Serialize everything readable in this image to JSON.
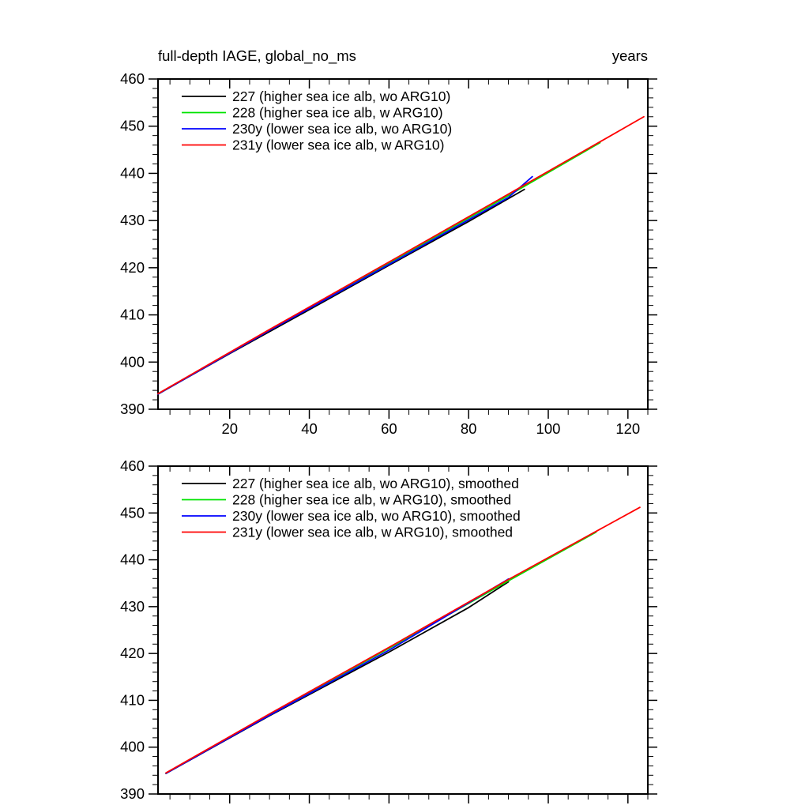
{
  "style": {
    "background": "#ffffff",
    "axis_color": "#000000"
  },
  "chart_data": [
    {
      "type": "line",
      "title": "full-depth IAGE, global_no_ms",
      "title_right": "years",
      "legend": {
        "position": "top-left-inside"
      },
      "axes": {
        "x": {
          "min": 2,
          "max": 125,
          "major_ticks": [
            20,
            40,
            60,
            80,
            100,
            120
          ],
          "minor_step": 5,
          "show_labels": true
        },
        "y": {
          "min": 390,
          "max": 460,
          "major_ticks": [
            390,
            400,
            410,
            420,
            430,
            440,
            450,
            460
          ],
          "minor_step": 2,
          "show_labels": true
        }
      },
      "series": [
        {
          "name": "227 (higher sea ice alb, wo ARG10)",
          "color": "#000000",
          "x": [
            2,
            20,
            40,
            60,
            80,
            94
          ],
          "y": [
            393.2,
            401.8,
            411.1,
            420.5,
            429.8,
            436.6
          ]
        },
        {
          "name": "228 (higher sea ice alb, w ARG10)",
          "color": "#00e400",
          "x": [
            2,
            30,
            60,
            90,
            113
          ],
          "y": [
            393.2,
            406.8,
            421.0,
            435.3,
            446.5
          ]
        },
        {
          "name": "230y (lower sea ice alb, wo ARG10)",
          "color": "#0000ff",
          "x": [
            2,
            30,
            60,
            90,
            96
          ],
          "y": [
            393.2,
            406.7,
            420.7,
            434.9,
            439.3
          ]
        },
        {
          "name": "231y (lower sea ice alb, w ARG10)",
          "color": "#ff0000",
          "x": [
            2,
            30,
            60,
            90,
            124
          ],
          "y": [
            393.3,
            406.9,
            421.2,
            435.6,
            452.0
          ]
        }
      ]
    },
    {
      "type": "line",
      "legend": {
        "position": "top-left-inside"
      },
      "axes": {
        "x": {
          "min": 2,
          "max": 125,
          "major_ticks": [
            20,
            40,
            60,
            80,
            100,
            120
          ],
          "minor_step": 5,
          "show_labels": false
        },
        "y": {
          "min": 390,
          "max": 460,
          "major_ticks": [
            390,
            400,
            410,
            420,
            430,
            440,
            450,
            460
          ],
          "minor_step": 2,
          "show_labels": true
        }
      },
      "series": [
        {
          "name": "227 (higher sea ice alb, wo ARG10), smoothed",
          "color": "#000000",
          "x": [
            4,
            30,
            60,
            80,
            90
          ],
          "y": [
            394.4,
            406.7,
            420.3,
            429.8,
            435.3
          ]
        },
        {
          "name": "228 (higher sea ice alb, w ARG10), smoothed",
          "color": "#00e400",
          "x": [
            4,
            30,
            60,
            90,
            112
          ],
          "y": [
            394.4,
            407.0,
            421.1,
            435.5,
            445.9
          ]
        },
        {
          "name": "230y (lower sea ice alb, wo ARG10), smoothed",
          "color": "#0000ff",
          "x": [
            4,
            30,
            60,
            90
          ],
          "y": [
            394.4,
            406.8,
            420.7,
            435.9
          ]
        },
        {
          "name": "231y (lower sea ice alb, w ARG10), smoothed",
          "color": "#ff0000",
          "x": [
            4,
            30,
            60,
            90,
            123
          ],
          "y": [
            394.5,
            407.1,
            421.3,
            435.8,
            451.2
          ]
        }
      ]
    }
  ]
}
